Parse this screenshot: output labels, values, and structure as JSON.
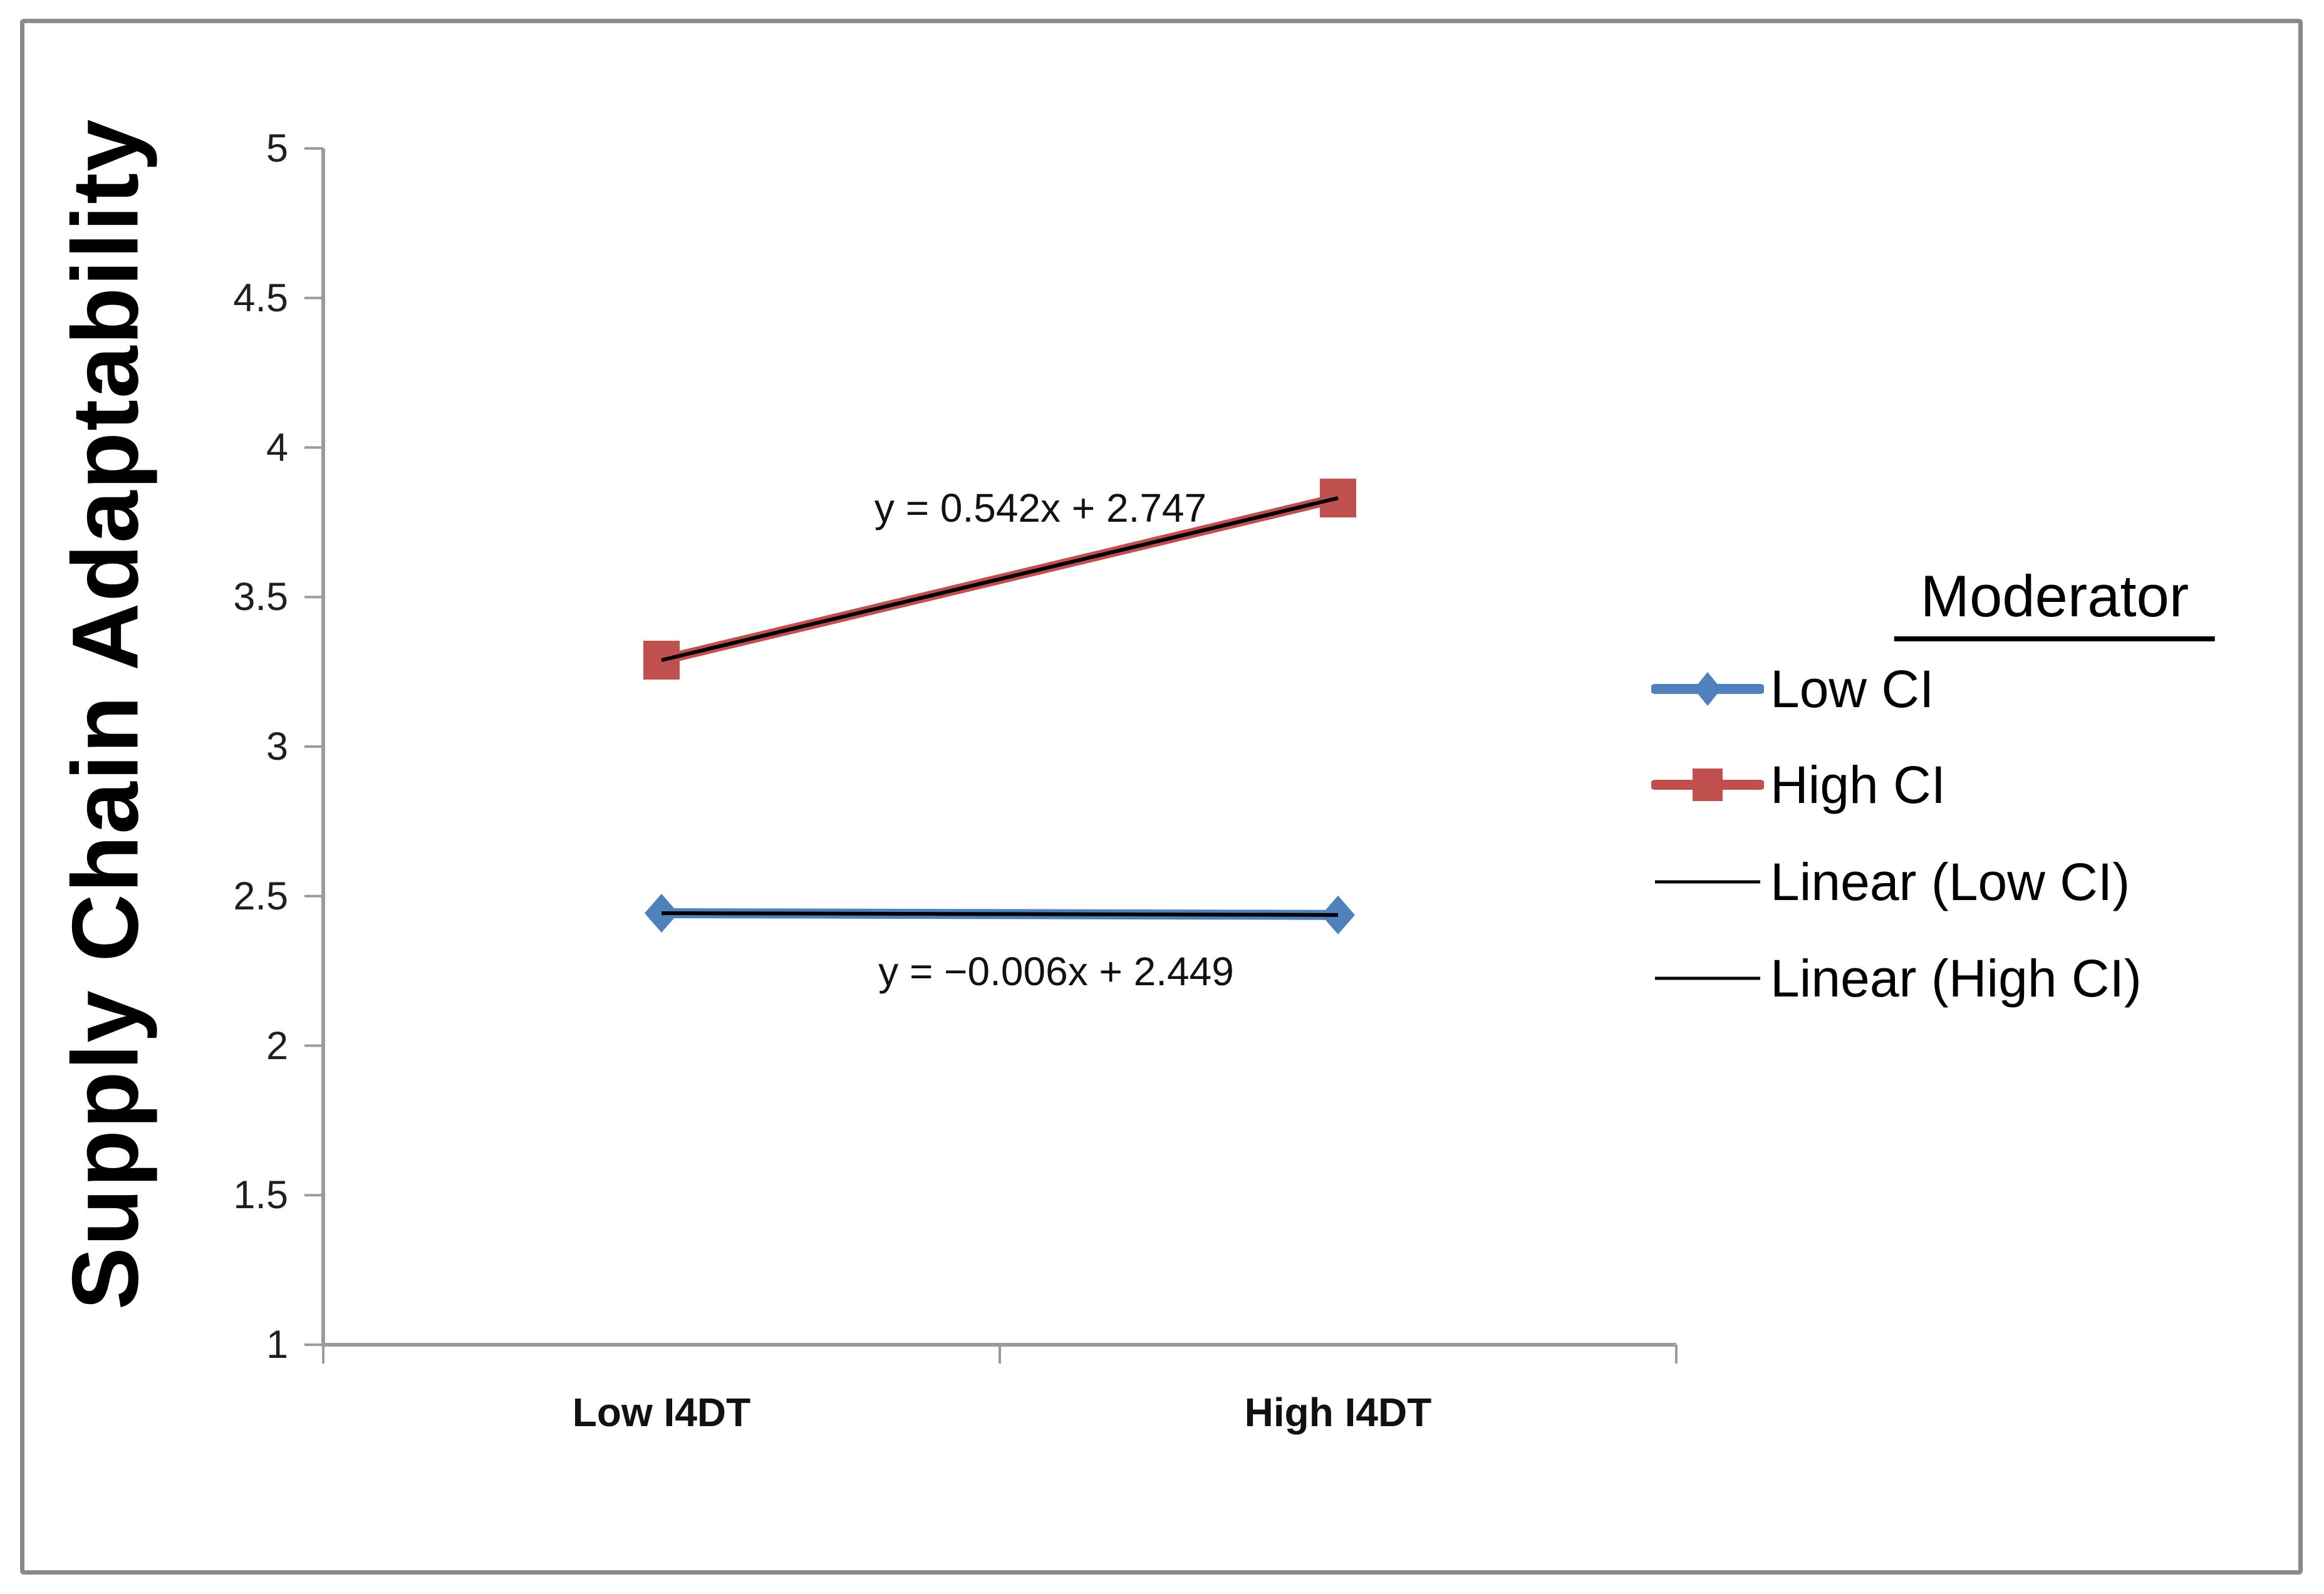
{
  "figure": {
    "background": "#ffffff",
    "border_color": "#8a8a8a"
  },
  "chart_data": {
    "type": "line",
    "title": "",
    "xlabel": "",
    "ylabel": "Supply Chain Adaptability",
    "categories": [
      "Low I4DT",
      "High I4DT"
    ],
    "series": [
      {
        "name": "Low CI",
        "color": "#4F81BD",
        "marker": "diamond",
        "values": [
          2.443,
          2.437
        ]
      },
      {
        "name": "High CI",
        "color": "#C0504D",
        "marker": "square",
        "values": [
          3.289,
          3.831
        ]
      }
    ],
    "trendlines": [
      {
        "for": "High CI",
        "equation": "y = 0.542x + 2.747",
        "slope": 0.542,
        "intercept": 2.747,
        "color": "#000000"
      },
      {
        "for": "Low CI",
        "equation": "y = −0.006x + 2.449",
        "slope": -0.006,
        "intercept": 2.449,
        "color": "#000000"
      }
    ],
    "ylim": [
      1,
      5
    ],
    "ytick_step": 0.5,
    "yticks": [
      "1",
      "1.5",
      "2",
      "2.5",
      "3",
      "3.5",
      "4",
      "4.5",
      "5"
    ],
    "grid": false,
    "axis_color": "#9b9b9b",
    "legend": {
      "title": "Moderator",
      "position": "right",
      "entries": [
        "Low CI",
        "High CI",
        "Linear (Low CI)",
        "Linear (High CI)"
      ]
    }
  }
}
